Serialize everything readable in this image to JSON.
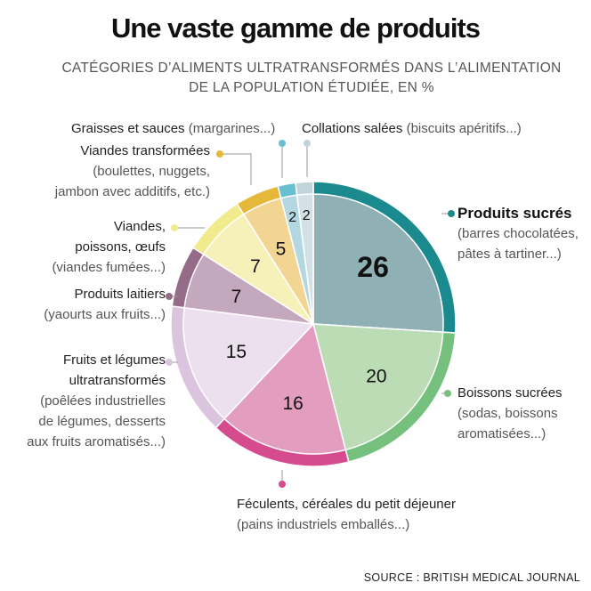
{
  "title": "Une vaste gamme de produits",
  "subtitle_line1": "CATÉGORIES D’ALIMENTS ULTRATRANSFORMÉS DANS L’ALIMENTATION",
  "subtitle_line2": "DE LA POPULATION ÉTUDIÉE, EN %",
  "source": "SOURCE :  BRITISH MEDICAL JOURNAL",
  "chart_data": {
    "type": "pie",
    "title": "Une vaste gamme de produits",
    "subtitle": "CATÉGORIES D’ALIMENTS ULTRATRANSFORMÉS DANS L’ALIMENTATION DE LA POPULATION ÉTUDIÉE, EN %",
    "unit": "%",
    "slices": [
      {
        "label": "Produits sucrés",
        "detail": "(barres chocolatées, pâtes à tartiner...)",
        "value": 26,
        "value_label": "26",
        "color": "#8fb0b4",
        "ring_color": "#1a8a8f"
      },
      {
        "label": "Boissons sucrées",
        "detail": "(sodas, boissons aromatisées...)",
        "value": 20,
        "value_label": "20",
        "color": "#bcdcb6",
        "ring_color": "#76c07d"
      },
      {
        "label": "Féculents, céréales du petit déjeuner",
        "detail": "(pains industriels emballés...)",
        "value": 16,
        "value_label": "16",
        "color": "#e39ebf",
        "ring_color": "#d64b8e"
      },
      {
        "label": "Fruits et légumes ultratransformés",
        "detail": "(poêlées industrielles de légumes, desserts aux fruits aromatisés...)",
        "value": 15,
        "value_label": "15",
        "color": "#ede0ee",
        "ring_color": "#dbc4de"
      },
      {
        "label": "Produits laitiers",
        "detail": "(yaourts aux fruits...)",
        "value": 7,
        "value_label": "7",
        "color": "#c4a8bd",
        "ring_color": "#946c88"
      },
      {
        "label": "Viandes, poissons, œufs",
        "detail": "(viandes fumées...)",
        "value": 7,
        "value_label": "7",
        "color": "#f6f1b8",
        "ring_color": "#f1eb8e"
      },
      {
        "label": "Viandes transformées",
        "detail": "(boulettes, nuggets, jambon avec additifs, etc.)",
        "value": 5,
        "value_label": "5",
        "color": "#f2d592",
        "ring_color": "#e6b83a"
      },
      {
        "label": "Graisses et sauces",
        "detail": "(margarines...)",
        "value": 2,
        "value_label": "2",
        "color": "#b4d8e2",
        "ring_color": "#68bfd0"
      },
      {
        "label": "Collations salées",
        "detail": "(biscuits apéritifs...)",
        "value": 2,
        "value_label": "2",
        "color": "#d3e0e5",
        "ring_color": "#c3d3da"
      }
    ]
  },
  "labels": {
    "produits_sucres": {
      "main": "Produits sucrés",
      "sub1": "(barres chocolatées,",
      "sub2": "pâtes à tartiner...)"
    },
    "boissons": {
      "main": "Boissons sucrées",
      "sub1": "(sodas, boissons",
      "sub2": "aromatisées...)"
    },
    "feculents": {
      "main": "Féculents, céréales du petit déjeuner",
      "sub1": "(pains industriels emballés...)"
    },
    "fruits": {
      "main1": "Fruits et légumes",
      "main2": "ultratransformés",
      "sub1": "(poêlées industrielles",
      "sub2": "de légumes,  desserts",
      "sub3": "aux fruits aromatisés...)"
    },
    "laitiers": {
      "main": "Produits laitiers",
      "sub1": "(yaourts aux fruits...)"
    },
    "viandes": {
      "main1": "Viandes,",
      "main2": "poissons, œufs",
      "sub1": "(viandes fumées...)"
    },
    "viandes_transformees": {
      "main": "Viandes transformées",
      "sub1": "(boulettes, nuggets,",
      "sub2": "jambon avec additifs, etc.)"
    },
    "graisses": {
      "main": "Graisses et sauces",
      "sub": "(margarines...)"
    },
    "collations": {
      "main": "Collations salées",
      "sub": "(biscuits apéritifs...)"
    }
  }
}
